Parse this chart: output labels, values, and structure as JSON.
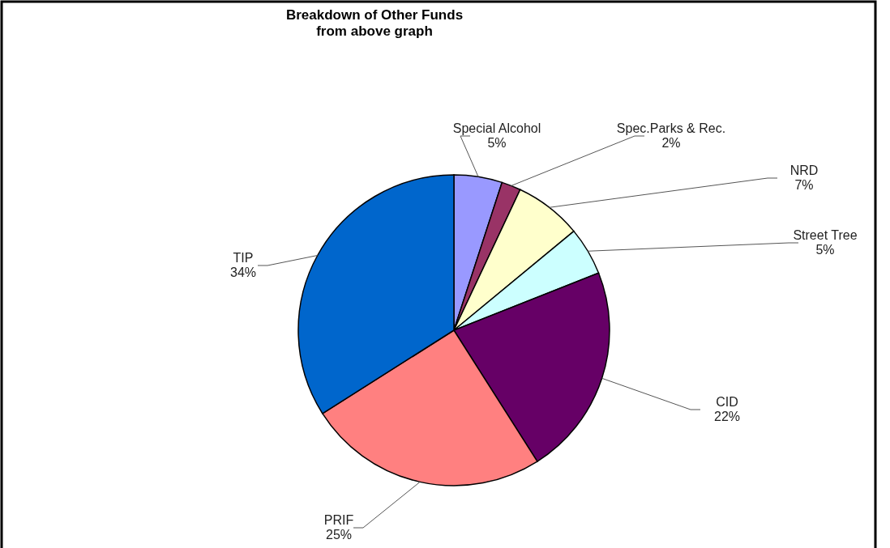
{
  "chart_data": {
    "type": "pie",
    "title": "Breakdown of Other Funds\nfrom above graph",
    "categories": [
      "Special Alcohol",
      "Spec.Parks & Rec.",
      "NRD",
      "Street Tree",
      "CID",
      "PRIF",
      "TIP"
    ],
    "values": [
      5,
      2,
      7,
      5,
      22,
      25,
      34
    ],
    "value_labels": [
      "5%",
      "2%",
      "7%",
      "5%",
      "22%",
      "25%",
      "34%"
    ],
    "colors": [
      "#9999ff",
      "#993366",
      "#ffffcc",
      "#ccffff",
      "#660066",
      "#ff8080",
      "#0066cc"
    ]
  }
}
